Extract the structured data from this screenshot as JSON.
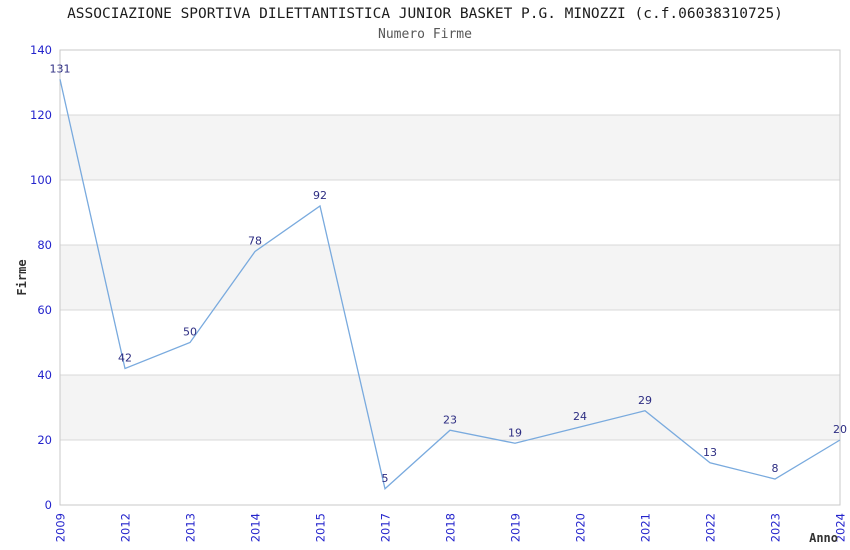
{
  "chart_data": {
    "type": "line",
    "title": "ASSOCIAZIONE SPORTIVA DILETTANTISTICA JUNIOR BASKET P.G. MINOZZI (c.f.06038310725)",
    "subtitle": "Numero Firme",
    "xlabel": "Anno",
    "ylabel": "Firme",
    "categories": [
      "2009",
      "2012",
      "2013",
      "2014",
      "2015",
      "2017",
      "2018",
      "2019",
      "2020",
      "2021",
      "2022",
      "2023",
      "2024"
    ],
    "values": [
      131,
      42,
      50,
      78,
      92,
      5,
      23,
      19,
      24,
      29,
      13,
      8,
      20
    ],
    "ylim": [
      0,
      140
    ],
    "yticks": [
      0,
      20,
      40,
      60,
      80,
      100,
      120,
      140
    ],
    "bands": [
      [
        20,
        40
      ],
      [
        60,
        80
      ],
      [
        100,
        120
      ]
    ],
    "grid": true,
    "legend": "none",
    "marker": "none",
    "x_tick_rotation_deg": 90,
    "colors": {
      "line": "#79aade",
      "tick_label": "#2424cc",
      "data_label": "#2d2d82",
      "band": "#f4f4f4",
      "gridline": "#d9d9d9",
      "border": "#c9c9c9",
      "title": "#1c1c1c",
      "subtitle": "#575757",
      "axis_title": "#333333",
      "background": "#ffffff"
    }
  }
}
